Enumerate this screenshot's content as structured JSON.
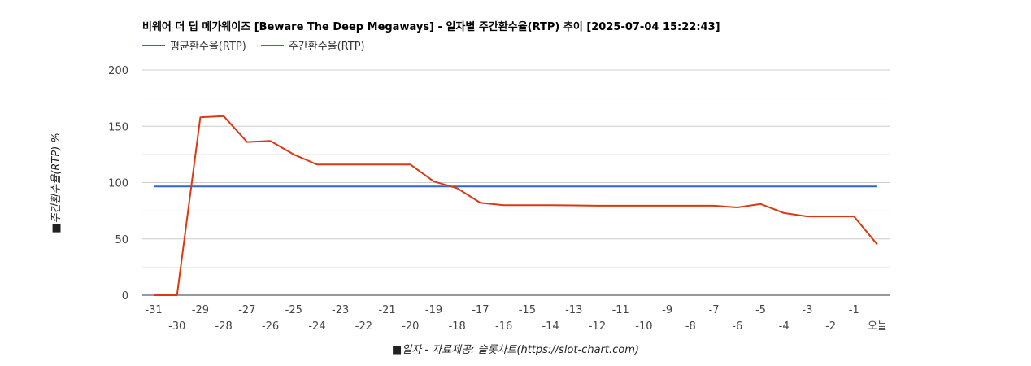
{
  "title": "비웨어 더 딥 메가웨이즈 [Beware The Deep Megaways] - 일자별 주간환수율(RTP) 추이 [2025-07-04 15:22:43]",
  "chart_data": {
    "type": "line",
    "title": "비웨어 더 딥 메가웨이즈 [Beware The Deep Megaways] - 일자별 주간환수율(RTP) 추이 [2025-07-04 15:22:43]",
    "xlabel": "■일자 - 자료제공: 슬롯차트(https://slot-chart.com)",
    "ylabel": "■주간환수율(RTP) %",
    "ylim": [
      0,
      200
    ],
    "yticks": [
      "0",
      "50",
      "100",
      "150",
      "200"
    ],
    "categories": [
      "-31",
      "-30",
      "-29",
      "-28",
      "-27",
      "-26",
      "-25",
      "-24",
      "-23",
      "-22",
      "-21",
      "-20",
      "-19",
      "-18",
      "-17",
      "-16",
      "-15",
      "-14",
      "-13",
      "-12",
      "-11",
      "-10",
      "-9",
      "-8",
      "-7",
      "-6",
      "-5",
      "-4",
      "-3",
      "-2",
      "-1",
      "오늘"
    ],
    "series": [
      {
        "name": "평균환수율(RTP)",
        "color": "#3366cc",
        "values": [
          96.5,
          96.5,
          96.5,
          96.5,
          96.5,
          96.5,
          96.5,
          96.5,
          96.5,
          96.5,
          96.5,
          96.5,
          96.5,
          96.5,
          96.5,
          96.5,
          96.5,
          96.5,
          96.5,
          96.5,
          96.5,
          96.5,
          96.5,
          96.5,
          96.5,
          96.5,
          96.5,
          96.5,
          96.5,
          96.5,
          96.5,
          96.5
        ]
      },
      {
        "name": "주간환수율(RTP)",
        "color": "#dc3912",
        "values": [
          0,
          0,
          158,
          159,
          136,
          137,
          125,
          116,
          116,
          116,
          116,
          116,
          101,
          95,
          82,
          80,
          80,
          80,
          79.8,
          79.5,
          79.5,
          79.5,
          79.5,
          79.5,
          79.5,
          78,
          81,
          73,
          70,
          70,
          70,
          45
        ]
      }
    ],
    "grid": true,
    "legend": "top-left"
  }
}
